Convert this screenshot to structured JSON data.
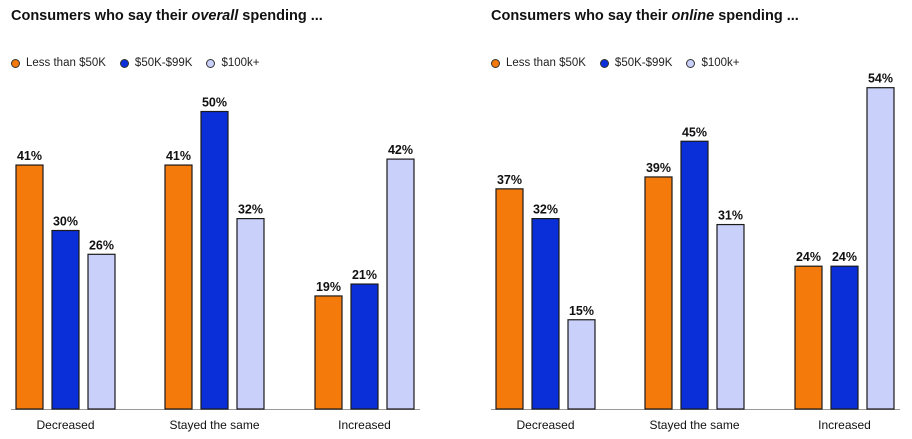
{
  "colors": {
    "low": "#f47a0b",
    "mid": "#0a2fd8",
    "high": "#c9d0fa",
    "bar_stroke": "#1a1a1a",
    "axis": "#9a9a9a"
  },
  "chart_data": [
    {
      "type": "bar",
      "title_prefix": "Consumers who say their ",
      "title_emph": "overall",
      "title_suffix": " spending ...",
      "categories": [
        "Decreased",
        "Stayed the same",
        "Increased"
      ],
      "series": [
        {
          "name": "Less than $50K",
          "values": [
            41,
            41,
            19
          ]
        },
        {
          "name": "$50K-$99K",
          "values": [
            30,
            50,
            21
          ]
        },
        {
          "name": "$100k+",
          "values": [
            26,
            32,
            42
          ]
        }
      ],
      "value_suffix": "%",
      "ylim": [
        0,
        55
      ]
    },
    {
      "type": "bar",
      "title_prefix": "Consumers who say their ",
      "title_emph": "online",
      "title_suffix": " spending ...",
      "categories": [
        "Decreased",
        "Stayed the same",
        "Increased"
      ],
      "series": [
        {
          "name": "Less than $50K",
          "values": [
            37,
            39,
            24
          ]
        },
        {
          "name": "$50K-$99K",
          "values": [
            32,
            45,
            24
          ]
        },
        {
          "name": "$100k+",
          "values": [
            15,
            31,
            54
          ]
        }
      ],
      "value_suffix": "%",
      "ylim": [
        0,
        55
      ]
    }
  ]
}
